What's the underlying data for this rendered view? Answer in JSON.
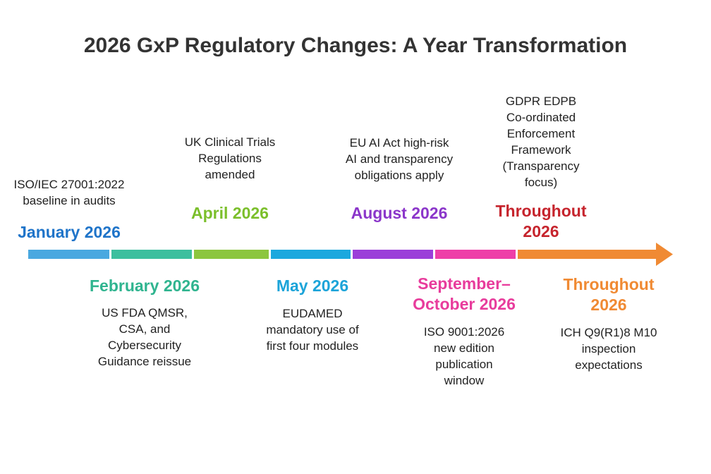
{
  "title": "2026 GxP Regulatory Changes: A Year Transformation",
  "events": [
    {
      "date": "January 2026",
      "description": "ISO/IEC 27001:2022\nbaseline in audits",
      "color": "#1f74c9"
    },
    {
      "date": "February 2026",
      "description": "US FDA QMSR,\nCSA, and\nCybersecurity\nGuidance reissue",
      "color": "#2fb48f"
    },
    {
      "date": "April 2026",
      "description": "UK Clinical Trials\nRegulations\namended",
      "color": "#7bbf2b"
    },
    {
      "date": "May 2026",
      "description": "EUDAMED\nmandatory use of\nfirst four modules",
      "color": "#1ca4d9"
    },
    {
      "date": "August 2026",
      "description": "EU AI Act high-risk\nAI and transparency\nobligations apply",
      "color": "#8b36ca"
    },
    {
      "date": "September–\nOctober 2026",
      "description": "ISO 9001:2026\nnew edition\npublication\nwindow",
      "color": "#e83c9c"
    },
    {
      "date": "Throughout\n2026",
      "description": "GDPR EDPB\nCo-ordinated\nEnforcement\nFramework\n(Transparency\nfocus)",
      "color": "#c6242d"
    },
    {
      "date": "Throughout\n2026",
      "description": "ICH Q9(R1)8 M10\ninspection\nexpectations",
      "color": "#f08a33"
    }
  ]
}
